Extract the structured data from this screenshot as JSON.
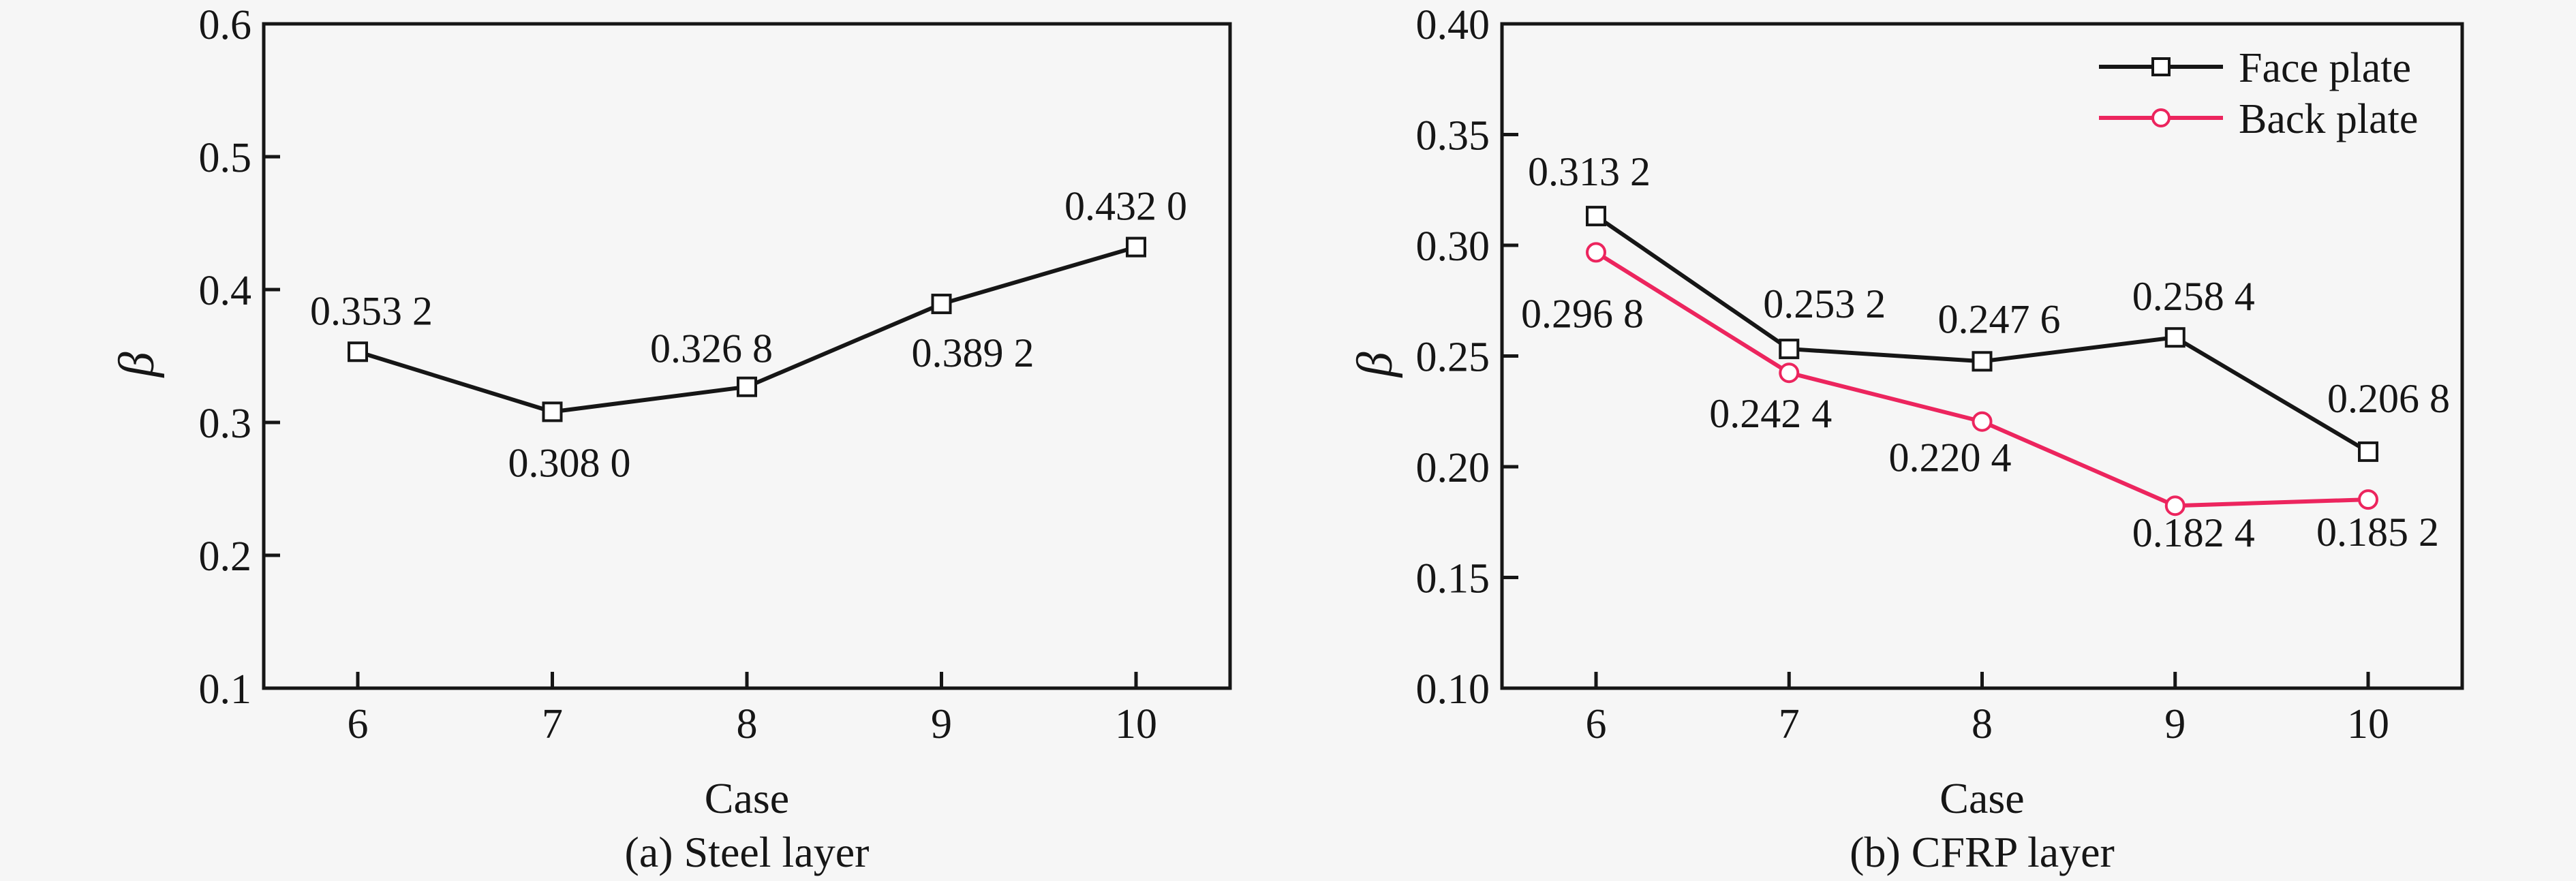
{
  "figure": {
    "background": "#f6f6f6",
    "ink_color": "#161616",
    "accent_pink": "#EC255E",
    "marker_fill": "#ffffff"
  },
  "chart_data": [
    {
      "type": "line",
      "caption": "(a) Steel layer",
      "xlabel": "Case",
      "ylabel": "β",
      "x": [
        6,
        7,
        8,
        9,
        10
      ],
      "x_tick_labels": [
        "6",
        "7",
        "8",
        "9",
        "10"
      ],
      "ylim": [
        0.1,
        0.6
      ],
      "grid": false,
      "legend": null,
      "y_ticks": [
        {
          "v": 0.6,
          "label": "0.6"
        },
        {
          "v": 0.5,
          "label": "0.5"
        },
        {
          "v": 0.4,
          "label": "0.4"
        },
        {
          "v": 0.3,
          "label": "0.3"
        },
        {
          "v": 0.2,
          "label": "0.2"
        },
        {
          "v": 0.1,
          "label": "0.1"
        }
      ],
      "series": [
        {
          "name": "Steel layer",
          "color": "#161616",
          "marker": "square",
          "values": [
            0.3532,
            0.308,
            0.3268,
            0.3892,
            0.432
          ],
          "point_labels": [
            "0.353 2",
            "0.308 0",
            "0.326 8",
            "0.389 2",
            "0.432 0"
          ],
          "label_offsets": [
            [
              20,
              -40
            ],
            [
              25,
              95
            ],
            [
              -52,
              -36
            ],
            [
              46,
              92
            ],
            [
              -15,
              -40
            ]
          ]
        }
      ]
    },
    {
      "type": "line",
      "caption": "(b) CFRP layer",
      "xlabel": "Case",
      "ylabel": "β",
      "x": [
        6,
        7,
        8,
        9,
        10
      ],
      "x_tick_labels": [
        "6",
        "7",
        "8",
        "9",
        "10"
      ],
      "ylim": [
        0.1,
        0.4
      ],
      "grid": false,
      "legend": {
        "position": "top-right"
      },
      "y_ticks": [
        {
          "v": 0.4,
          "label": "0.40"
        },
        {
          "v": 0.35,
          "label": "0.35"
        },
        {
          "v": 0.3,
          "label": "0.30"
        },
        {
          "v": 0.25,
          "label": "0.25"
        },
        {
          "v": 0.2,
          "label": "0.20"
        },
        {
          "v": 0.15,
          "label": "0.15"
        },
        {
          "v": 0.1,
          "label": "0.10"
        }
      ],
      "series": [
        {
          "name": "Face plate",
          "color": "#161616",
          "marker": "square",
          "values": [
            0.3132,
            0.2532,
            0.2476,
            0.2584,
            0.2068
          ],
          "point_labels": [
            "0.313 2",
            "0.253 2",
            "0.247 6",
            "0.258 4",
            "0.206 8"
          ],
          "label_offsets": [
            [
              -10,
              -45
            ],
            [
              52,
              -46
            ],
            [
              25,
              -42
            ],
            [
              27,
              -40
            ],
            [
              30,
              -58
            ]
          ]
        },
        {
          "name": "Back plate",
          "color": "#EC255E",
          "marker": "circle",
          "values": [
            0.2968,
            0.2424,
            0.2204,
            0.1824,
            0.1852
          ],
          "point_labels": [
            "0.296 8",
            "0.242 4",
            "0.220 4",
            "0.182 4",
            "0.185 2"
          ],
          "label_offsets": [
            [
              -20,
              110
            ],
            [
              -27,
              80
            ],
            [
              -47,
              73
            ],
            [
              27,
              60
            ],
            [
              14,
              68
            ]
          ]
        }
      ]
    }
  ]
}
